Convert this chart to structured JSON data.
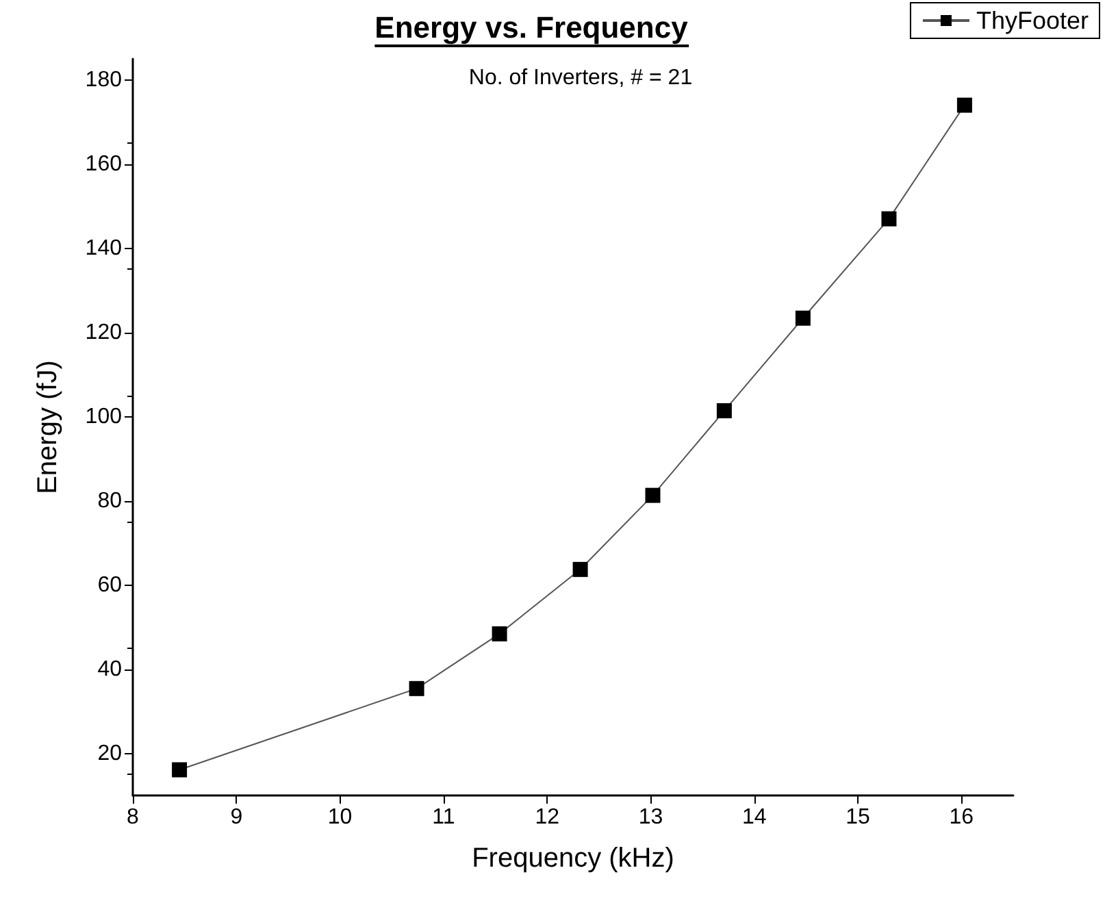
{
  "chart_data": {
    "type": "line",
    "title": "Energy vs. Frequency",
    "subtitle": "No. of Inverters, # = 21",
    "xlabel": "Frequency (kHz)",
    "ylabel": "Energy (fJ)",
    "series": [
      {
        "name": "ThyFooter",
        "color": "#000000",
        "x": [
          8.45,
          10.74,
          11.54,
          12.32,
          13.02,
          13.71,
          14.47,
          15.3,
          16.03
        ],
        "values": [
          16.1,
          35.4,
          48.4,
          63.7,
          81.3,
          101.4,
          123.4,
          147,
          174
        ]
      }
    ],
    "xlim": [
      8,
      16.5
    ],
    "xticks": [
      8,
      9,
      10,
      11,
      12,
      13,
      14,
      15,
      16
    ],
    "ylim": [
      10,
      185
    ],
    "yticks": [
      20,
      40,
      60,
      80,
      100,
      120,
      140,
      160,
      180
    ],
    "grid": false,
    "legend": "top right",
    "marker": "square",
    "line_style": "solid"
  }
}
